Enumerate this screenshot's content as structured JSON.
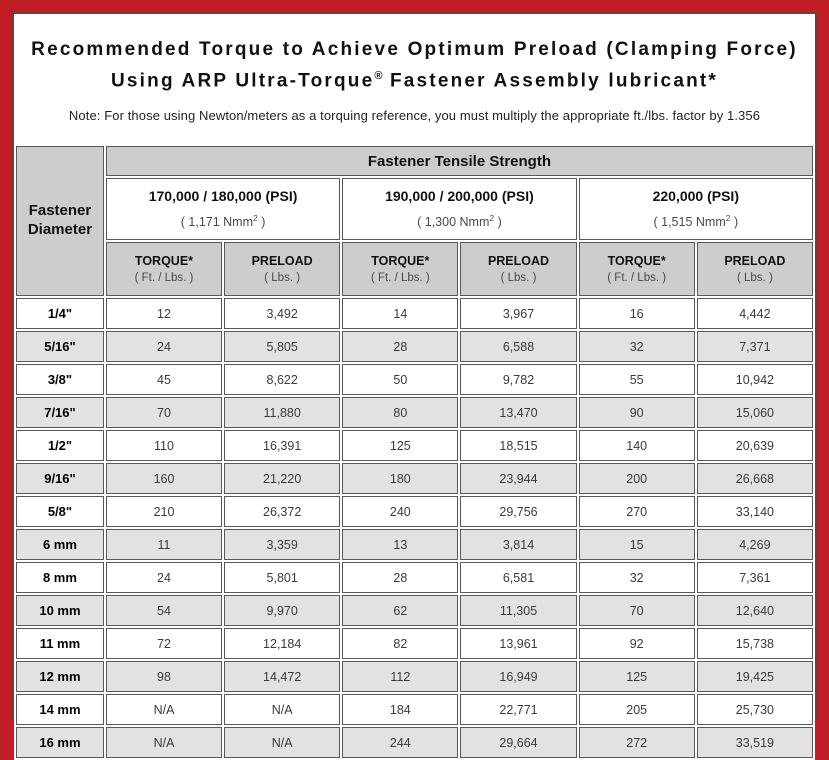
{
  "title": {
    "line1": "Recommended Torque to Achieve Optimum Preload (Clamping Force)",
    "line2_before": "Using ARP Ultra-Torque",
    "line2_reg": "®",
    "line2_after": " Fastener Assembly lubricant*",
    "note": "Note: For those using Newton/meters as a torquing reference, you must multiply the appropriate ft./lbs. factor by 1.356"
  },
  "colors": {
    "frame_red": "#c11d27",
    "header_gray": "#cdcdcd",
    "alt_row_gray": "#e2e2e2",
    "cell_border": "#585858"
  },
  "table": {
    "corner_line1": "Fastener",
    "corner_line2": "Diameter",
    "tensile_header": "Fastener Tensile Strength",
    "col_headers": {
      "torque_label": "TORQUE*",
      "torque_unit": "( Ft. / Lbs. )",
      "preload_label": "PRELOAD",
      "preload_unit": "( Lbs. )"
    },
    "strength_groups": [
      {
        "psi": "170,000 / 180,000 (PSI)",
        "nmm_prefix": "( 1,171 Nmm",
        "nmm_sup": "2",
        "nmm_suffix": " )"
      },
      {
        "psi": "190,000 / 200,000 (PSI)",
        "nmm_prefix": "( 1,300 Nmm",
        "nmm_sup": "2",
        "nmm_suffix": " )"
      },
      {
        "psi": "220,000 (PSI)",
        "nmm_prefix": "( 1,515 Nmm",
        "nmm_sup": "2",
        "nmm_suffix": " )"
      }
    ],
    "rows": [
      {
        "diameter": "1/4\"",
        "values": [
          "12",
          "3,492",
          "14",
          "3,967",
          "16",
          "4,442"
        ]
      },
      {
        "diameter": "5/16\"",
        "values": [
          "24",
          "5,805",
          "28",
          "6,588",
          "32",
          "7,371"
        ]
      },
      {
        "diameter": "3/8\"",
        "values": [
          "45",
          "8,622",
          "50",
          "9,782",
          "55",
          "10,942"
        ]
      },
      {
        "diameter": "7/16\"",
        "values": [
          "70",
          "11,880",
          "80",
          "13,470",
          "90",
          "15,060"
        ]
      },
      {
        "diameter": "1/2\"",
        "values": [
          "110",
          "16,391",
          "125",
          "18,515",
          "140",
          "20,639"
        ]
      },
      {
        "diameter": "9/16\"",
        "values": [
          "160",
          "21,220",
          "180",
          "23,944",
          "200",
          "26,668"
        ]
      },
      {
        "diameter": "5/8\"",
        "values": [
          "210",
          "26,372",
          "240",
          "29,756",
          "270",
          "33,140"
        ]
      },
      {
        "diameter": "6 mm",
        "values": [
          "11",
          "3,359",
          "13",
          "3,814",
          "15",
          "4,269"
        ]
      },
      {
        "diameter": "8 mm",
        "values": [
          "24",
          "5,801",
          "28",
          "6,581",
          "32",
          "7,361"
        ]
      },
      {
        "diameter": "10 mm",
        "values": [
          "54",
          "9,970",
          "62",
          "11,305",
          "70",
          "12,640"
        ]
      },
      {
        "diameter": "11 mm",
        "values": [
          "72",
          "12,184",
          "82",
          "13,961",
          "92",
          "15,738"
        ]
      },
      {
        "diameter": "12 mm",
        "values": [
          "98",
          "14,472",
          "112",
          "16,949",
          "125",
          "19,425"
        ]
      },
      {
        "diameter": "14 mm",
        "values": [
          "N/A",
          "N/A",
          "184",
          "22,771",
          "205",
          "25,730"
        ]
      },
      {
        "diameter": "16 mm",
        "values": [
          "N/A",
          "N/A",
          "244",
          "29,664",
          "272",
          "33,519"
        ]
      }
    ]
  }
}
